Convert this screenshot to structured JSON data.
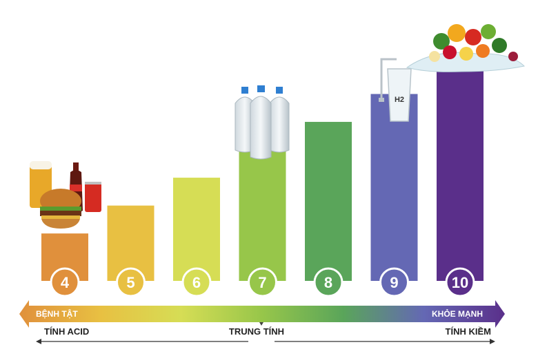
{
  "chart_data": {
    "type": "bar",
    "categories": [
      "4",
      "5",
      "6",
      "7",
      "8",
      "9",
      "10"
    ],
    "values": [
      4,
      5,
      6,
      7,
      8,
      9,
      10
    ],
    "colors": [
      "#e0903c",
      "#e8c042",
      "#d6dd55",
      "#97c64a",
      "#5aa55a",
      "#6468b4",
      "#5a2f8a"
    ],
    "ylim": [
      0,
      10
    ],
    "scale": {
      "left_label": "BỆNH TẬT",
      "right_label": "KHỎE MẠNH",
      "gradient": [
        "#e0903c",
        "#e8c042",
        "#d6dd55",
        "#97c64a",
        "#5aa55a",
        "#6468b4",
        "#5a2f8a"
      ]
    },
    "annotations": {
      "acid": "TÍNH ACID",
      "neutral": "TRUNG TÍNH",
      "alkaline": "TÍNH KIỀM"
    },
    "illustrations": {
      "glass_label": "H2",
      "items": [
        "burger-soda-beer-icon",
        "water-bottles-icon",
        "hydrogen-water-glass-icon",
        "vegetables-splash-icon"
      ]
    }
  }
}
